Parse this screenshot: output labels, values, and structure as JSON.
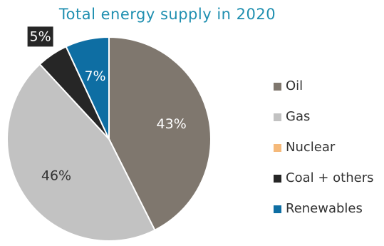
{
  "chart_data": {
    "type": "pie",
    "title": "Total energy supply in 2020",
    "categories": [
      "Oil",
      "Gas",
      "Nuclear",
      "Coal + others",
      "Renewables"
    ],
    "values": [
      43,
      46,
      0,
      5,
      7
    ],
    "labels": [
      "43%",
      "46%",
      "",
      "5%",
      "7%"
    ],
    "colors": [
      "#7f776e",
      "#c2c2c2",
      "#f5b97a",
      "#262626",
      "#0e6ea3"
    ],
    "label_colors": [
      "#ffffff",
      "#333333",
      "#333333",
      "#ffffff",
      "#ffffff"
    ],
    "start_angle_deg": 0,
    "direction": "clockwise",
    "legend_position": "right"
  }
}
